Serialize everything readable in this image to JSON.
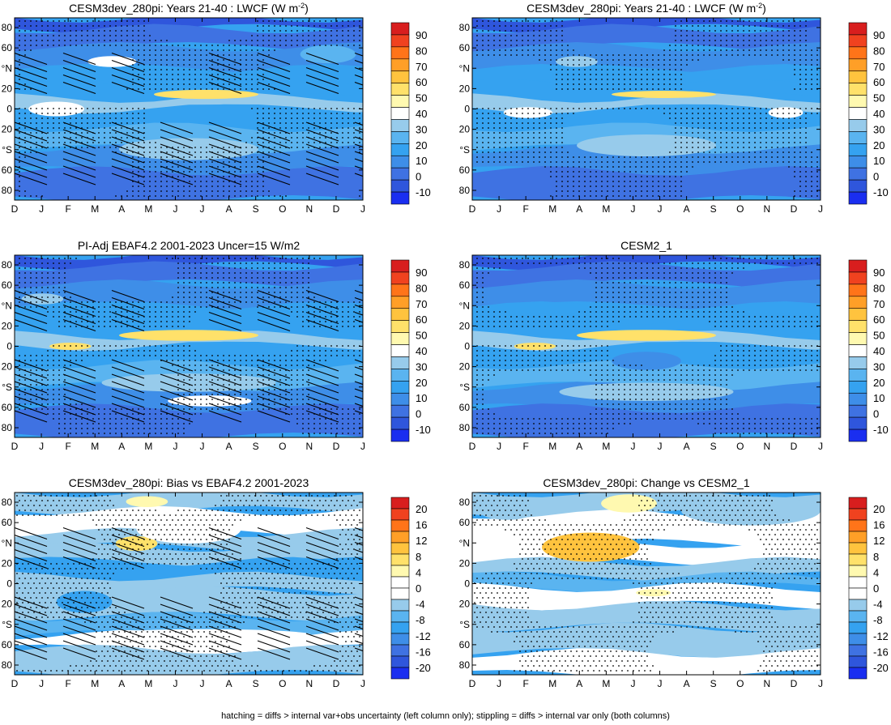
{
  "footer": "hatching = diffs > internal var+obs uncertainty (left column only); stippling = diffs > internal var only (both columns)",
  "colors": {
    "levels_main": [
      "#1a2ef0",
      "#2f56dc",
      "#3f72e2",
      "#3e8ee8",
      "#35a2f0",
      "#5ab4f0",
      "#97cbeb",
      "#ffffff",
      "#fff9b0",
      "#ffe16a",
      "#ffc33e",
      "#ff9f27",
      "#ff7419",
      "#f0421f",
      "#d81e1e"
    ],
    "levels_diff": [
      "#1a2ef0",
      "#2f56dc",
      "#3f72e2",
      "#3e8ee8",
      "#35a2f0",
      "#5ab4f0",
      "#97cbeb",
      "#ffffff",
      "#ffffff",
      "#fff9b0",
      "#ffe16a",
      "#ffc33e",
      "#ff9f27",
      "#ff7419",
      "#f0421f",
      "#d81e1e"
    ]
  },
  "chart_data": [
    {
      "type": "heatmap",
      "title": "CESM3dev_280pi: Years 21-40 : LWCF (W m",
      "title_sup": "-2",
      "title_tail": ")",
      "x_ticks": [
        "D",
        "J",
        "F",
        "M",
        "A",
        "M",
        "J",
        "J",
        "A",
        "S",
        "O",
        "N",
        "D",
        "J"
      ],
      "y_ticks": [
        "80",
        "60",
        "°N",
        "20",
        "0",
        "20",
        "°S",
        "60",
        "80"
      ],
      "colorbar_ticks": [
        "90",
        "80",
        "70",
        "60",
        "50",
        "40",
        "30",
        "20",
        "10",
        "0",
        "-10"
      ],
      "hatching": true,
      "stippling": true
    },
    {
      "type": "heatmap",
      "title": "CESM3dev_280pi: Years 21-40 : LWCF (W m",
      "title_sup": "-2",
      "title_tail": ")",
      "x_ticks": [
        "D",
        "J",
        "F",
        "M",
        "A",
        "M",
        "J",
        "J",
        "A",
        "S",
        "O",
        "N",
        "D",
        "J"
      ],
      "y_ticks": [
        "80",
        "60",
        "°N",
        "20",
        "0",
        "20",
        "°S",
        "60",
        "80"
      ],
      "colorbar_ticks": [
        "90",
        "80",
        "70",
        "60",
        "50",
        "40",
        "30",
        "20",
        "10",
        "0",
        "-10"
      ],
      "hatching": false,
      "stippling": true
    },
    {
      "type": "heatmap",
      "title": "PI-Adj EBAF4.2 2001-2023 Uncer=15 W/m2",
      "x_ticks": [
        "D",
        "J",
        "F",
        "M",
        "A",
        "M",
        "J",
        "J",
        "A",
        "S",
        "O",
        "N",
        "D",
        "J"
      ],
      "y_ticks": [
        "80",
        "60",
        "°N",
        "20",
        "0",
        "20",
        "°S",
        "60",
        "80"
      ],
      "colorbar_ticks": [
        "90",
        "80",
        "70",
        "60",
        "50",
        "40",
        "30",
        "20",
        "10",
        "0",
        "-10"
      ],
      "hatching": true,
      "stippling": true
    },
    {
      "type": "heatmap",
      "title": "CESM2_1",
      "x_ticks": [
        "D",
        "J",
        "F",
        "M",
        "A",
        "M",
        "J",
        "J",
        "A",
        "S",
        "O",
        "N",
        "D",
        "J"
      ],
      "y_ticks": [
        "80",
        "60",
        "°N",
        "20",
        "0",
        "20",
        "°S",
        "60",
        "80"
      ],
      "colorbar_ticks": [
        "90",
        "80",
        "70",
        "60",
        "50",
        "40",
        "30",
        "20",
        "10",
        "0",
        "-10"
      ],
      "hatching": false,
      "stippling": true
    },
    {
      "type": "heatmap",
      "title": "CESM3dev_280pi: Bias vs EBAF4.2 2001-2023",
      "x_ticks": [
        "D",
        "J",
        "F",
        "M",
        "A",
        "M",
        "J",
        "J",
        "A",
        "S",
        "O",
        "N",
        "D",
        "J"
      ],
      "y_ticks": [
        "80",
        "60",
        "°N",
        "20",
        "0",
        "20",
        "°S",
        "60",
        "80"
      ],
      "colorbar_ticks": [
        "20",
        "16",
        "12",
        "8",
        "4",
        "0",
        "-4",
        "-8",
        "-12",
        "-16",
        "-20"
      ],
      "hatching": true,
      "stippling": true
    },
    {
      "type": "heatmap",
      "title": "CESM3dev_280pi: Change vs CESM2_1",
      "x_ticks": [
        "D",
        "J",
        "F",
        "M",
        "A",
        "M",
        "J",
        "J",
        "A",
        "S",
        "O",
        "N",
        "D",
        "J"
      ],
      "y_ticks": [
        "80",
        "60",
        "°N",
        "20",
        "0",
        "20",
        "°S",
        "60",
        "80"
      ],
      "colorbar_ticks": [
        "20",
        "16",
        "12",
        "8",
        "4",
        "0",
        "-4",
        "-8",
        "-12",
        "-16",
        "-20"
      ],
      "hatching": false,
      "stippling": true
    }
  ]
}
